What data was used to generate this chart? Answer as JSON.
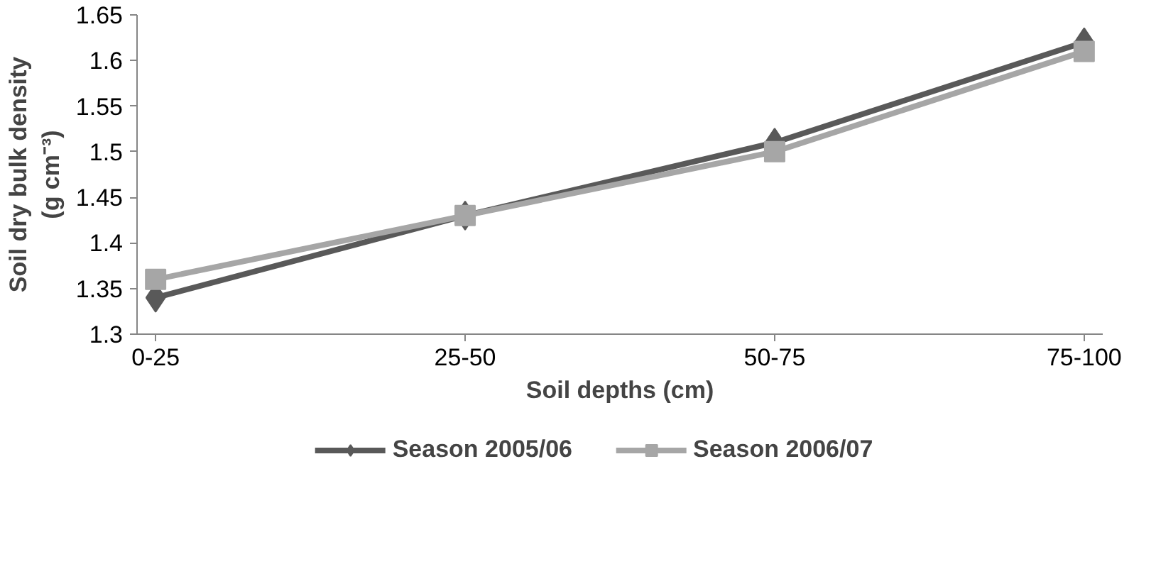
{
  "chart_data": {
    "type": "line",
    "xlabel": "Soil depths (cm)",
    "ylabel": "Soil dry bulk density\n(g cm⁻³)",
    "categories": [
      "0-25",
      "25-50",
      "50-75",
      "75-100"
    ],
    "ylim": [
      1.3,
      1.65
    ],
    "yticks": [
      1.3,
      1.35,
      1.4,
      1.45,
      1.5,
      1.55,
      1.6,
      1.65
    ],
    "grid": false,
    "legend": "bottom",
    "series": [
      {
        "name": "Season 2005/06",
        "color": "#595959",
        "marker": "diamond",
        "values": [
          1.34,
          1.43,
          1.51,
          1.62
        ]
      },
      {
        "name": "Season 2006/07",
        "color": "#a6a6a6",
        "marker": "square",
        "values": [
          1.36,
          1.43,
          1.5,
          1.61
        ]
      }
    ]
  }
}
